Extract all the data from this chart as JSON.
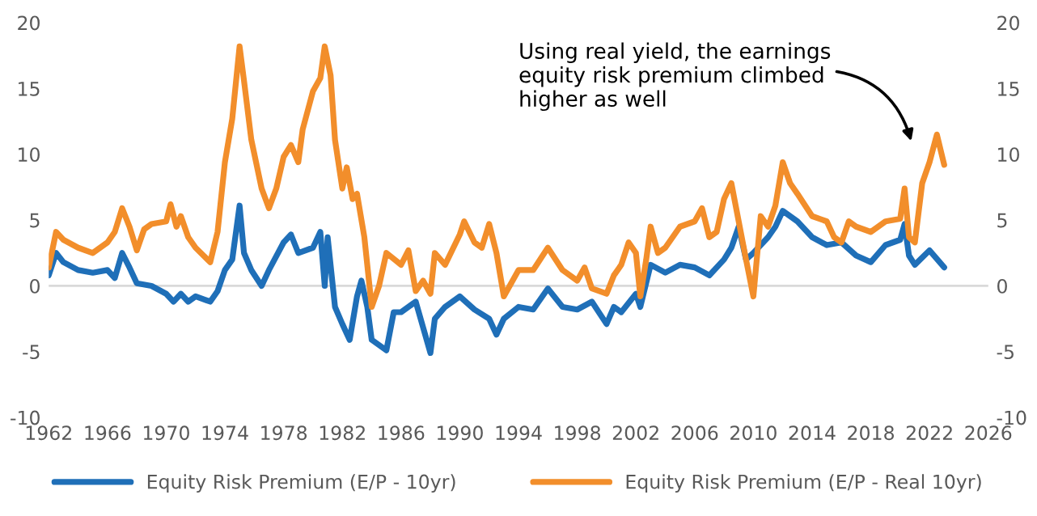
{
  "chart_data": {
    "type": "line",
    "x": [
      1962,
      1962.5,
      1963,
      1964,
      1965,
      1966,
      1966.5,
      1967,
      1967.5,
      1968,
      1968.5,
      1969,
      1970,
      1970.3,
      1970.7,
      1971,
      1971.5,
      1972,
      1973,
      1973.5,
      1974,
      1974.5,
      1975,
      1975.3,
      1975.8,
      1976.5,
      1977,
      1977.5,
      1978,
      1978.5,
      1979,
      1979.3,
      1980,
      1980.5,
      1980.8,
      1981.2,
      1981.5,
      1982,
      1982.3,
      1982.7,
      1983,
      1983.5,
      1984,
      1984.5,
      1985,
      1986,
      1986.5,
      1987,
      1987.5,
      1988,
      1988.3,
      1989,
      1990,
      1990.3,
      1991,
      1991.5,
      1992,
      1992.5,
      1993,
      1994,
      1995,
      1996,
      1997,
      1998,
      1998.5,
      1999,
      2000,
      2000.5,
      2001,
      2001.5,
      2002,
      2002.3,
      2002.7,
      2003,
      2003.5,
      2004,
      2005,
      2006,
      2006.5,
      2007,
      2007.5,
      2008,
      2008.5,
      2009,
      2009.5,
      2010,
      2010.5,
      2011,
      2011.5,
      2012,
      2012.5,
      2013,
      2014,
      2015,
      2015.5,
      2016,
      2016.5,
      2017,
      2018,
      2019,
      2020,
      2020.3,
      2020.6,
      2021,
      2021.5,
      2022,
      2022.5,
      2023
    ],
    "series": [
      {
        "name": "Equity Risk Premium (E/P - 10yr)",
        "color": "#1f6fb8",
        "x": [
          1962,
          1962.5,
          1963,
          1964,
          1965,
          1966,
          1966.5,
          1967,
          1967.5,
          1968,
          1969,
          1970,
          1970.5,
          1971,
          1971.5,
          1972,
          1973,
          1973.5,
          1974,
          1974.5,
          1975,
          1975.3,
          1975.8,
          1976.5,
          1977,
          1978,
          1978.5,
          1979,
          1980,
          1980.5,
          1980.8,
          1981,
          1981.5,
          1982,
          1982.5,
          1983,
          1983.3,
          1983.7,
          1984,
          1985,
          1985.5,
          1986,
          1987,
          1988,
          1988.3,
          1989,
          1990,
          1991,
          1992,
          1992.5,
          1993,
          1994,
          1995,
          1996,
          1997,
          1998,
          1999,
          2000,
          2000.5,
          2001,
          2002,
          2002.3,
          2003,
          2004,
          2005,
          2006,
          2007,
          2008,
          2008.5,
          2009,
          2009.5,
          2010,
          2011,
          2011.5,
          2012,
          2013,
          2014,
          2015,
          2016,
          2017,
          2018,
          2019,
          2020,
          2020.3,
          2020.6,
          2021,
          2022,
          2023
        ],
        "values": [
          0.8,
          2.5,
          1.8,
          1.2,
          1.0,
          1.2,
          0.6,
          2.5,
          1.4,
          0.2,
          0,
          -0.6,
          -1.2,
          -0.6,
          -1.2,
          -0.8,
          -1.2,
          -0.4,
          1.2,
          2.0,
          6.1,
          2.5,
          1.2,
          0,
          1.2,
          3.3,
          3.9,
          2.5,
          2.9,
          4.1,
          0,
          3.7,
          -1.6,
          -2.9,
          -4.1,
          -0.8,
          0.4,
          -1.6,
          -4.1,
          -4.9,
          -2.0,
          -2.0,
          -1.2,
          -5.1,
          -2.5,
          -1.6,
          -0.8,
          -1.8,
          -2.5,
          -3.7,
          -2.5,
          -1.6,
          -1.8,
          -0.2,
          -1.6,
          -1.8,
          -1.2,
          -2.9,
          -1.6,
          -2.0,
          -0.6,
          -1.6,
          1.6,
          1.0,
          1.6,
          1.4,
          0.8,
          2.0,
          2.9,
          4.5,
          2.0,
          2.5,
          3.7,
          4.5,
          5.7,
          4.9,
          3.7,
          3.1,
          3.3,
          2.3,
          1.8,
          3.1,
          3.5,
          4.7,
          2.3,
          1.6,
          2.7,
          1.4
        ]
      },
      {
        "name": "Equity Risk Premium (E/P - Real 10yr)",
        "color": "#f28e2b",
        "values": [
          1.4,
          4.1,
          3.5,
          2.9,
          2.5,
          3.3,
          4.1,
          5.9,
          4.5,
          2.7,
          4.3,
          4.7,
          4.9,
          6.2,
          4.5,
          5.3,
          3.7,
          2.9,
          1.8,
          4.1,
          9.4,
          12.7,
          18.2,
          15.6,
          11.1,
          7.4,
          5.9,
          7.4,
          9.8,
          10.7,
          9.4,
          11.9,
          14.8,
          15.8,
          18.2,
          16.0,
          11.1,
          7.4,
          9.0,
          6.6,
          7.0,
          3.7,
          -1.6,
          0,
          2.5,
          1.6,
          2.7,
          -0.4,
          0.4,
          -0.6,
          2.5,
          1.6,
          3.9,
          4.9,
          3.3,
          2.9,
          4.7,
          2.5,
          -0.8,
          1.2,
          1.2,
          2.9,
          1.2,
          0.4,
          1.4,
          -0.2,
          -0.6,
          0.8,
          1.6,
          3.3,
          2.5,
          -0.8,
          2.0,
          4.5,
          2.5,
          2.9,
          4.5,
          4.9,
          5.9,
          3.7,
          4.1,
          6.6,
          7.8,
          4.9,
          2.0,
          -0.8,
          5.3,
          4.5,
          6.1,
          9.4,
          7.8,
          7.0,
          5.3,
          4.9,
          3.7,
          3.3,
          4.9,
          4.5,
          4.1,
          4.9,
          5.1,
          7.4,
          3.7,
          3.3,
          7.8,
          9.4,
          11.5,
          9.2
        ]
      }
    ],
    "xlim": [
      1962,
      2026
    ],
    "xticks": [
      1962,
      1966,
      1970,
      1974,
      1978,
      1982,
      1986,
      1990,
      1994,
      1998,
      2002,
      2006,
      2010,
      2014,
      2018,
      2022,
      2026
    ],
    "ylim": [
      -10,
      20
    ],
    "yticks": [
      -10,
      -5,
      0,
      5,
      10,
      15,
      20
    ],
    "y2lim": [
      -10,
      20
    ],
    "y2ticks": [
      -10,
      -5,
      0,
      5,
      10,
      15,
      20
    ],
    "ref_lines": [
      {
        "axis": "y",
        "value": 0,
        "color": "#d9d9d9"
      }
    ],
    "annotations": [
      "Using real yield, the earnings equity risk premium climbed higher as well"
    ],
    "grid": false,
    "legend": "bottom",
    "line_style": "solid",
    "marker": "none"
  }
}
